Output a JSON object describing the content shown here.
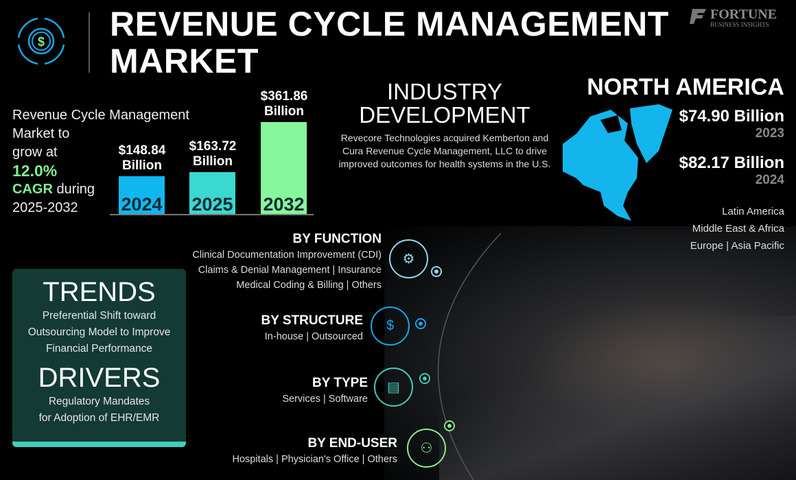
{
  "title": {
    "line1": "REVENUE CYCLE MANAGEMENT",
    "line2": "MARKET"
  },
  "brand": {
    "name": "FORTUNE",
    "tagline": "BUSINESS INSIGHTS"
  },
  "summary": {
    "line1": "Revenue Cycle Management",
    "line2": "Market to",
    "line3": "grow at",
    "cagr": "12.0%",
    "cagr_label": "CAGR",
    "during": " during",
    "period": "2025-2032"
  },
  "chart_data": {
    "type": "bar",
    "categories": [
      "2024",
      "2025",
      "2032"
    ],
    "values": [
      148.84,
      163.72,
      361.86
    ],
    "data_labels": [
      {
        "value": "$148.84",
        "unit": "Billion"
      },
      {
        "value": "$163.72",
        "unit": "Billion"
      },
      {
        "value": "$361.86",
        "unit": "Billion"
      }
    ],
    "colors": [
      "#0fb8ef",
      "#3ad8cf",
      "#86f79b"
    ],
    "title": "",
    "xlabel": "",
    "ylabel": "",
    "grid": false
  },
  "industry": {
    "title1": "INDUSTRY",
    "title2": "DEVELOPMENT",
    "text": "Revecore Technologies acquired Kemberton and Cura Revenue Cycle Management, LLC to drive  improved outcomes for health systems in the U.S."
  },
  "region": {
    "title": "NORTH AMERICA",
    "values": [
      {
        "value": "$74.90 Billion",
        "year": "2023"
      },
      {
        "value": "$82.17 Billion",
        "year": "2024"
      }
    ],
    "others": [
      "Latin America",
      "Middle East & Africa",
      "Europe  |  Asia Pacific"
    ],
    "map_color": "#13b5ec"
  },
  "trends": {
    "title": "TRENDS",
    "text": [
      "Preferential Shift toward",
      "Outsourcing Model to Improve",
      "Financial Performance"
    ]
  },
  "drivers": {
    "title": "DRIVERS",
    "text": [
      "Regulatory Mandates",
      "for Adoption of EHR/EMR"
    ]
  },
  "segments": [
    {
      "title": "BY FUNCTION",
      "lines": [
        "Clinical Documentation Improvement (CDI)",
        "Claims & Denial Management  |  Insurance",
        "Medical Coding & Billing  |  Others"
      ],
      "icon": "chart-gear-icon",
      "color": "#8fd9ee"
    },
    {
      "title": "BY STRUCTURE",
      "lines": [
        "In-house  |  Outsourced"
      ],
      "icon": "hand-dollar-gear-icon",
      "color": "#15a9e6"
    },
    {
      "title": "BY TYPE",
      "lines": [
        "Services  |  Software"
      ],
      "icon": "laptop-chart-icon",
      "color": "#3fd0bd"
    },
    {
      "title": "BY END-USER",
      "lines": [
        "Hospitals   |  Physician's Office  |  Others"
      ],
      "icon": "users-moneybag-icon",
      "color": "#7ff08f"
    }
  ]
}
